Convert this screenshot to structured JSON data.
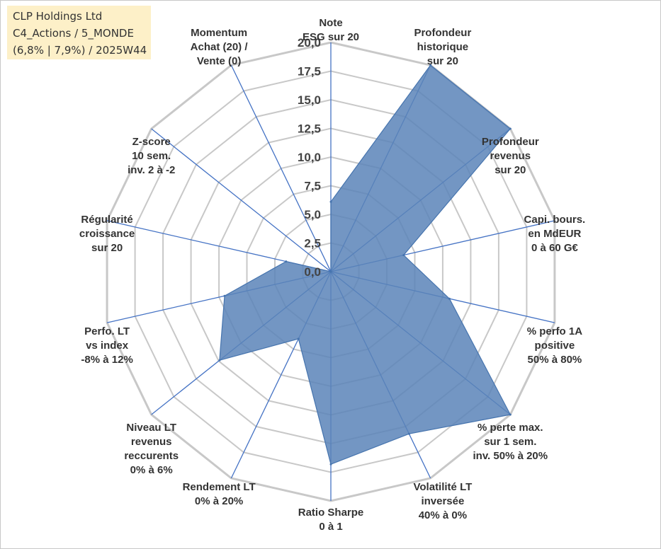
{
  "info": {
    "line1": "CLP Holdings Ltd",
    "line2": "C4_Actions / 5_MONDE",
    "line3": "(6,8% | 7,9%) / 2025W44"
  },
  "colors": {
    "fill": "#5b84b8",
    "stroke": "#4674ae",
    "axis": "#4472c4",
    "grid": "#c8c8c8",
    "background": "#fdf0c8"
  },
  "chart_data": {
    "type": "radar",
    "rmin": 0,
    "rmax": 20,
    "ticks": [
      "0,0",
      "2,5",
      "5,0",
      "7,5",
      "10,0",
      "12,5",
      "15,0",
      "17,5",
      "20,0"
    ],
    "axes": [
      {
        "label": [
          "Note",
          "ESG sur 20"
        ],
        "value": 6.1
      },
      {
        "label": [
          "Profondeur",
          "historique",
          "sur 20"
        ],
        "value": 20
      },
      {
        "label": [
          "Profondeur",
          "revenus",
          "sur 20"
        ],
        "value": 20
      },
      {
        "label": [
          "Capi. bours.",
          "en MdEUR",
          "0 à 60 G€"
        ],
        "value": 6.5
      },
      {
        "label": [
          "% perfo 1A",
          "positive",
          "50% à 80%"
        ],
        "value": 10.6
      },
      {
        "label": [
          "% perte max.",
          "sur 1 sem.",
          "inv. 50% à 20%"
        ],
        "value": 20
      },
      {
        "label": [
          "Volatilité LT",
          "inversée",
          "40% à 0%"
        ],
        "value": 15.7
      },
      {
        "label": [
          "Ratio Sharpe",
          "0 à 1"
        ],
        "value": 16.8
      },
      {
        "label": [
          "Rendement LT",
          "0% à 20%"
        ],
        "value": 6.5
      },
      {
        "label": [
          "Niveau LT",
          "revenus",
          "reccurents",
          "0% à 6%"
        ],
        "value": 12.4
      },
      {
        "label": [
          "Perfo. LT",
          "vs index",
          "-8% à 12%"
        ],
        "value": 9.5
      },
      {
        "label": [
          "Régularité",
          "croissance",
          "sur 20"
        ],
        "value": 4.0
      },
      {
        "label": [
          "Z-score",
          "10 sem.",
          "inv. 2 à -2"
        ],
        "value": 0
      },
      {
        "label": [
          "Momentum",
          "Achat (20) /",
          "Vente (0)"
        ],
        "value": 0
      }
    ]
  }
}
